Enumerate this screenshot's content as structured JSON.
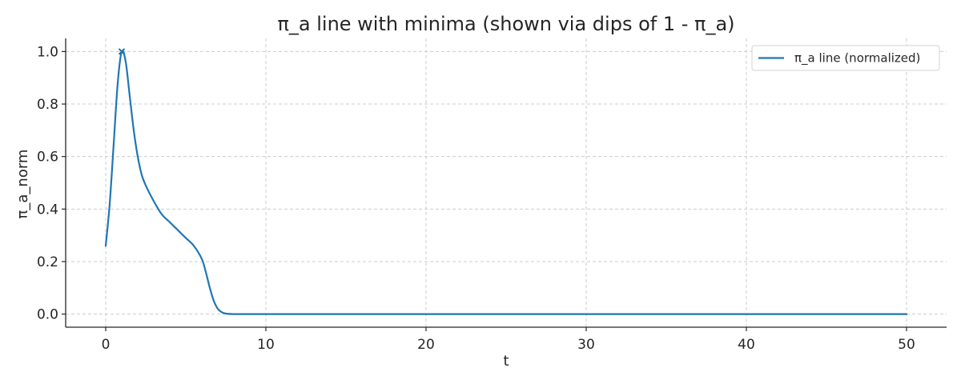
{
  "chart_data": {
    "type": "line",
    "title": "π_a line with minima (shown via dips of 1 - π_a)",
    "xlabel": "t",
    "ylabel": "π_a_norm",
    "xlim": [
      -2.5,
      52.5
    ],
    "ylim": [
      -0.05,
      1.05
    ],
    "xticks": [
      0,
      10,
      20,
      30,
      40,
      50
    ],
    "yticks": [
      0.0,
      0.2,
      0.4,
      0.6,
      0.8,
      1.0
    ],
    "xtick_labels": [
      "0",
      "10",
      "20",
      "30",
      "40",
      "50"
    ],
    "ytick_labels": [
      "0.0",
      "0.2",
      "0.4",
      "0.6",
      "0.8",
      "1.0"
    ],
    "grid": true,
    "legend_position": "top-right",
    "series": [
      {
        "name": "π_a line (normalized)",
        "color": "#1f77b4",
        "points": [
          [
            0,
            0.26
          ],
          [
            0.25,
            0.42
          ],
          [
            0.5,
            0.65
          ],
          [
            0.75,
            0.88
          ],
          [
            1.0,
            1.0
          ],
          [
            1.25,
            0.96
          ],
          [
            1.5,
            0.83
          ],
          [
            1.75,
            0.7
          ],
          [
            2.0,
            0.6
          ],
          [
            2.25,
            0.53
          ],
          [
            2.5,
            0.49
          ],
          [
            3.0,
            0.43
          ],
          [
            3.5,
            0.38
          ],
          [
            4.0,
            0.35
          ],
          [
            4.5,
            0.32
          ],
          [
            5.0,
            0.29
          ],
          [
            5.5,
            0.26
          ],
          [
            6.0,
            0.21
          ],
          [
            6.25,
            0.16
          ],
          [
            6.5,
            0.1
          ],
          [
            6.75,
            0.05
          ],
          [
            7.0,
            0.02
          ],
          [
            7.25,
            0.007
          ],
          [
            7.5,
            0.002
          ],
          [
            8.0,
            0.0
          ],
          [
            10,
            0.0
          ],
          [
            20,
            0.0
          ],
          [
            30,
            0.0
          ],
          [
            40,
            0.0
          ],
          [
            50,
            0.0
          ]
        ]
      }
    ],
    "markers": [
      {
        "x": 1.0,
        "y": 1.0,
        "symbol": "x",
        "color": "#1f77b4"
      }
    ]
  }
}
